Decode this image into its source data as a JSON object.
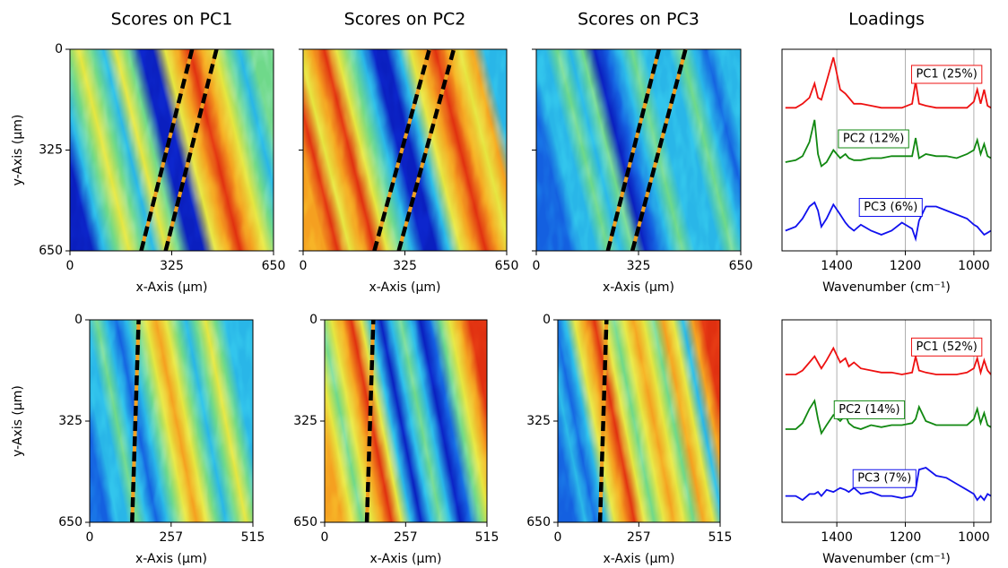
{
  "chart_data": [
    {
      "type": "heatmap",
      "title": "Scores on PC1",
      "xlabel": "x-Axis (μm)",
      "ylabel": "y-Axis (μm)",
      "xlim": [
        0,
        650
      ],
      "ylim": [
        650,
        0
      ],
      "xticks": [
        0,
        325,
        650
      ],
      "yticks": [
        0,
        325,
        650
      ]
    },
    {
      "type": "heatmap",
      "title": "Scores on PC2",
      "xlabel": "x-Axis (μm)",
      "xlim": [
        0,
        650
      ],
      "ylim": [
        650,
        0
      ],
      "xticks": [
        0,
        325,
        650
      ]
    },
    {
      "type": "heatmap",
      "title": "Scores on PC3",
      "xlabel": "x-Axis (μm)",
      "xlim": [
        0,
        650
      ],
      "ylim": [
        650,
        0
      ],
      "xticks": [
        0,
        325,
        650
      ]
    },
    {
      "type": "line",
      "title": "Loadings",
      "xlabel": "Wavenumber (cm⁻¹)",
      "xlim": [
        1560,
        950
      ],
      "ylim": [
        0,
        10
      ],
      "xticks": [
        1400,
        1200,
        1000
      ],
      "grid": true,
      "x": [
        1550,
        1520,
        1500,
        1480,
        1465,
        1455,
        1445,
        1430,
        1410,
        1390,
        1375,
        1365,
        1350,
        1330,
        1300,
        1270,
        1240,
        1210,
        1180,
        1170,
        1160,
        1140,
        1110,
        1080,
        1050,
        1020,
        1000,
        990,
        980,
        970,
        960,
        950
      ],
      "series": [
        {
          "name": "PC1 (25%)",
          "color": "#ee1111",
          "values": [
            7.1,
            7.1,
            7.3,
            7.6,
            8.3,
            7.6,
            7.5,
            8.4,
            9.6,
            8.0,
            7.8,
            7.6,
            7.3,
            7.3,
            7.2,
            7.1,
            7.1,
            7.1,
            7.3,
            8.4,
            7.3,
            7.2,
            7.1,
            7.1,
            7.1,
            7.1,
            7.4,
            8.0,
            7.3,
            8.0,
            7.2,
            7.1
          ]
        },
        {
          "name": "PC2 (12%)",
          "color": "#118811",
          "values": [
            4.4,
            4.5,
            4.7,
            5.4,
            6.5,
            4.8,
            4.2,
            4.4,
            5.0,
            4.6,
            4.8,
            4.6,
            4.5,
            4.5,
            4.6,
            4.6,
            4.7,
            4.7,
            4.7,
            5.6,
            4.6,
            4.8,
            4.7,
            4.7,
            4.6,
            4.8,
            5.0,
            5.5,
            4.8,
            5.3,
            4.7,
            4.6
          ]
        },
        {
          "name": "PC3 (6%)",
          "color": "#1111ee",
          "values": [
            1.0,
            1.2,
            1.6,
            2.2,
            2.4,
            2.0,
            1.2,
            1.6,
            2.3,
            1.8,
            1.4,
            1.2,
            1.0,
            1.3,
            1.0,
            0.8,
            1.0,
            1.4,
            1.1,
            0.6,
            1.5,
            2.2,
            2.2,
            2.0,
            1.8,
            1.6,
            1.3,
            1.2,
            1.0,
            0.8,
            0.9,
            1.0
          ]
        }
      ]
    },
    {
      "type": "heatmap",
      "xlabel": "x-Axis (μm)",
      "ylabel": "y-Axis (μm)",
      "xlim": [
        0,
        515
      ],
      "ylim": [
        650,
        0
      ],
      "xticks": [
        0,
        257,
        515
      ],
      "yticks": [
        0,
        325,
        650
      ]
    },
    {
      "type": "heatmap",
      "xlabel": "x-Axis (μm)",
      "xlim": [
        0,
        515
      ],
      "ylim": [
        650,
        0
      ],
      "xticks": [
        0,
        257,
        515
      ],
      "yticks": [
        0,
        325,
        650
      ]
    },
    {
      "type": "heatmap",
      "xlabel": "x-Axis (μm)",
      "xlim": [
        0,
        515
      ],
      "ylim": [
        650,
        0
      ],
      "xticks": [
        0,
        257,
        515
      ],
      "yticks": [
        0,
        325,
        650
      ]
    },
    {
      "type": "line",
      "xlabel": "Wavenumber (cm⁻¹)",
      "xlim": [
        1560,
        950
      ],
      "ylim": [
        0,
        10
      ],
      "xticks": [
        1400,
        1200,
        1000
      ],
      "grid": true,
      "x": [
        1550,
        1520,
        1500,
        1480,
        1465,
        1455,
        1445,
        1430,
        1410,
        1390,
        1375,
        1365,
        1350,
        1330,
        1300,
        1270,
        1240,
        1210,
        1180,
        1170,
        1160,
        1140,
        1110,
        1080,
        1050,
        1020,
        1000,
        990,
        980,
        970,
        960,
        950
      ],
      "series": [
        {
          "name": "PC1 (52%)",
          "color": "#ee1111",
          "values": [
            7.3,
            7.3,
            7.5,
            7.9,
            8.2,
            7.9,
            7.6,
            8.0,
            8.6,
            7.9,
            8.1,
            7.7,
            7.9,
            7.6,
            7.5,
            7.4,
            7.4,
            7.3,
            7.4,
            8.2,
            7.5,
            7.4,
            7.3,
            7.3,
            7.3,
            7.4,
            7.6,
            8.1,
            7.4,
            8.0,
            7.5,
            7.3
          ]
        },
        {
          "name": "PC2 (14%)",
          "color": "#118811",
          "values": [
            4.6,
            4.6,
            4.9,
            5.6,
            6.0,
            5.1,
            4.4,
            4.8,
            5.3,
            5.0,
            5.3,
            4.9,
            4.7,
            4.6,
            4.8,
            4.7,
            4.8,
            4.8,
            4.9,
            5.1,
            5.7,
            5.0,
            4.8,
            4.8,
            4.8,
            4.8,
            5.1,
            5.6,
            4.9,
            5.4,
            4.8,
            4.7
          ]
        },
        {
          "name": "PC3 (7%)",
          "color": "#1111ee",
          "values": [
            1.3,
            1.3,
            1.1,
            1.4,
            1.4,
            1.5,
            1.3,
            1.6,
            1.5,
            1.7,
            1.6,
            1.5,
            1.7,
            1.4,
            1.5,
            1.3,
            1.3,
            1.2,
            1.3,
            1.6,
            2.6,
            2.7,
            2.3,
            2.2,
            1.9,
            1.6,
            1.4,
            1.1,
            1.3,
            1.1,
            1.4,
            1.3
          ]
        }
      ]
    }
  ]
}
